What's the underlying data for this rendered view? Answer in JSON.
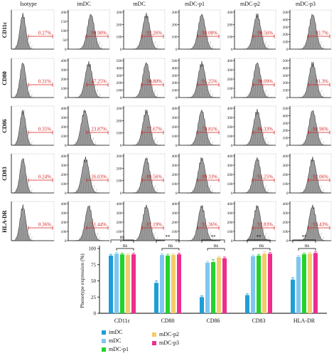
{
  "chart_data": [
    {
      "type": "histogram-grid",
      "columns": [
        "Isotype",
        "imDC",
        "mDC",
        "mDC-p1",
        "mDC-p2",
        "mDC-p3"
      ],
      "rows": [
        "CD11c",
        "CD80",
        "CD86",
        "CD83",
        "HLA-DR"
      ],
      "percentages": [
        [
          "0.27%",
          "90.90%",
          "92.26%",
          "93.08%",
          "90.56%",
          "92.7%"
        ],
        [
          "0.31%",
          "47.25%",
          "90.80%",
          "91.25%",
          "90.09%",
          "91.3%"
        ],
        [
          "0.35%",
          "23.87%",
          "77.67%",
          "78.81%",
          "86.33%",
          "84.96%"
        ],
        [
          "0.24%",
          "26.03%",
          "89.56%",
          "89.33%",
          "91.25%",
          "92.06%"
        ],
        [
          "0.36%",
          "51.44%",
          "87.19%",
          "91.36%",
          "92.83%",
          "93.43%"
        ]
      ],
      "y_ticks": [
        [
          [],
          [
            "0",
            "50",
            "100",
            "150",
            "200"
          ],
          [
            "0",
            "100",
            "200",
            "300"
          ],
          [
            "0",
            "100",
            "200",
            "300"
          ],
          [
            "0",
            "100",
            "200",
            "300"
          ],
          [
            "0",
            "100",
            "200",
            "300",
            "400",
            "500"
          ]
        ],
        [
          [],
          [
            "0",
            "100",
            "200",
            "300",
            "400"
          ],
          [
            "0",
            "100",
            "200",
            "300",
            "400",
            "500"
          ],
          [
            "0",
            "100",
            "200",
            "300",
            "400",
            "500"
          ],
          [
            "0",
            "100",
            "200",
            "300",
            "400"
          ],
          [
            "0",
            "100",
            "200",
            "300",
            "400",
            "500"
          ]
        ],
        [
          [],
          [
            "0",
            "100",
            "200",
            "300",
            "400"
          ],
          [
            "0",
            "100",
            "200",
            "300"
          ],
          [
            "0",
            "100",
            "200",
            "300",
            "400"
          ],
          [
            "0",
            "100",
            "200",
            "300",
            "400"
          ],
          [
            "0",
            "100",
            "200",
            "300",
            "400",
            "500"
          ]
        ],
        [
          [],
          [
            "0",
            "100",
            "200",
            "300",
            "400"
          ],
          [
            "0",
            "100",
            "200",
            "300"
          ],
          [
            "0",
            "100",
            "200",
            "300",
            "400"
          ],
          [
            "0",
            "100",
            "200",
            "300",
            "400"
          ],
          [
            "0",
            "100",
            "200",
            "300",
            "400"
          ]
        ],
        [
          [],
          [
            "0",
            "100",
            "200",
            "300",
            "400"
          ],
          [
            "0",
            "100",
            "200",
            "300",
            "400"
          ],
          [
            "0",
            "100",
            "200",
            "300",
            "400"
          ],
          [
            "0",
            "100",
            "200",
            "300",
            "400"
          ],
          [
            "0",
            "100",
            "200",
            "300",
            "400"
          ]
        ]
      ],
      "peak_position": [
        [
          0.27,
          0.55,
          0.55,
          0.55,
          0.55,
          0.55
        ],
        [
          0.27,
          0.5,
          0.55,
          0.55,
          0.55,
          0.55
        ],
        [
          0.27,
          0.4,
          0.55,
          0.55,
          0.55,
          0.55
        ],
        [
          0.27,
          0.42,
          0.55,
          0.55,
          0.55,
          0.55
        ],
        [
          0.27,
          0.5,
          0.55,
          0.55,
          0.55,
          0.55
        ]
      ]
    },
    {
      "type": "bar",
      "ylabel": "Phenotype expression (%)",
      "ylim": [
        0,
        100
      ],
      "yticks": [
        "0",
        "25",
        "50",
        "75",
        "100"
      ],
      "categories": [
        "CD11c",
        "CD80",
        "CD86",
        "CD83",
        "HLA-DR"
      ],
      "series": [
        {
          "name": "imDC",
          "color": "#1e9ed8",
          "values": [
            89,
            47,
            25,
            28,
            52
          ],
          "errors": [
            2,
            3,
            2,
            2,
            3
          ]
        },
        {
          "name": "mDC",
          "color": "#7fc7ef",
          "values": [
            92,
            90,
            78,
            88,
            87
          ],
          "errors": [
            2,
            2,
            2,
            2,
            2
          ]
        },
        {
          "name": "mDC-p1",
          "color": "#22d42a",
          "values": [
            91,
            89,
            79,
            89,
            91
          ],
          "errors": [
            2,
            2,
            4,
            2,
            2
          ]
        },
        {
          "name": "mDC-p2",
          "color": "#f5cc6a",
          "values": [
            90,
            90,
            86,
            92,
            92
          ],
          "errors": [
            2,
            2,
            2,
            3,
            2
          ]
        },
        {
          "name": "mDC-p3",
          "color": "#ee2e8c",
          "values": [
            91,
            91,
            85,
            92,
            93
          ],
          "errors": [
            2,
            2,
            2,
            2,
            2
          ]
        }
      ],
      "significance": [
        {
          "category": "CD11c",
          "outer": "ns",
          "inner": "ns"
        },
        {
          "category": "CD80",
          "outer": "**",
          "inner": "ns"
        },
        {
          "category": "CD86",
          "outer": "**",
          "inner": "ns"
        },
        {
          "category": "CD83",
          "outer": "**",
          "inner": "ns"
        },
        {
          "category": "HLA-DR",
          "outer": "**",
          "inner": "ns"
        }
      ],
      "legend_position": "bottom-left"
    }
  ],
  "colors": {
    "percent_text": "#d42020",
    "gate_line": "#d42020",
    "histogram_fill": "#9a9a9a"
  }
}
